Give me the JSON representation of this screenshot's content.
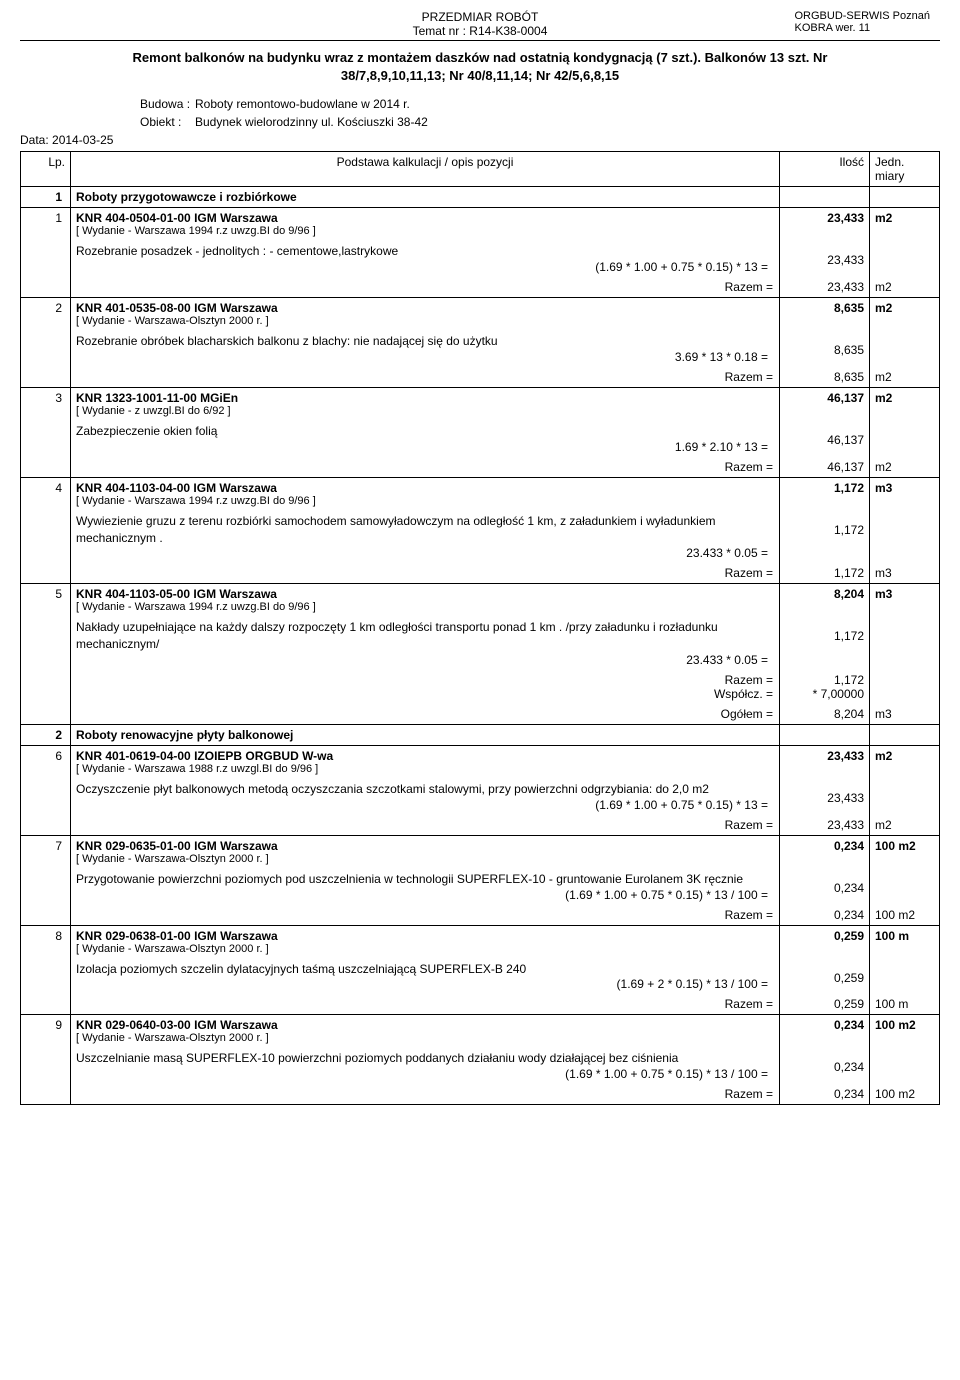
{
  "header": {
    "center_line1": "PRZEDMIAR ROBÓT",
    "center_line2": "Temat nr : R14-K38-0004",
    "right_line1": "ORGBUD-SERWIS Poznań",
    "right_line2": "KOBRA wer. 11"
  },
  "title": "Remont balkonów na budynku wraz z montażem daszków nad ostatnią kondygnacją (7 szt.). Balkonów 13 szt. Nr 38/7,8,9,10,11,13; Nr 40/8,11,14; Nr 42/5,6,8,15",
  "meta": {
    "budowa_label": "Budowa :",
    "budowa": "Roboty remontowo-budowlane w 2014 r.",
    "obiekt_label": "Obiekt :",
    "obiekt": "Budynek wielorodzinny ul. Kościuszki 38-42",
    "data_label": "Data:",
    "data": "2014-03-25"
  },
  "columns": {
    "lp": "Lp.",
    "desc": "Podstawa kalkulacji / opis pozycji",
    "qty": "Ilość",
    "unit": "Jedn. miary"
  },
  "sections": [
    {
      "num": "1",
      "title": "Roboty przygotowawcze i rozbiórkowe"
    },
    {
      "num": "2",
      "title": "Roboty renowacyjne płyty balkonowej"
    }
  ],
  "items": [
    {
      "num": "1",
      "code": "KNR 404-0504-01-00 IGM Warszawa",
      "edition": "[ Wydanie - Warszawa 1994 r.z uwzg.BI do 9/96 ]",
      "desc": "Rozebranie posadzek - jednolitych : - cementowe,lastrykowe",
      "calc": "(1.69 * 1.00 + 0.75 * 0.15) * 13 =",
      "calc_val": "23,433",
      "razem": "Razem  =",
      "razem_val": "23,433",
      "razem_unit": "m2",
      "qty": "23,433",
      "unit": "m2"
    },
    {
      "num": "2",
      "code": "KNR 401-0535-08-00 IGM Warszawa",
      "edition": "[ Wydanie - Warszawa-Olsztyn 2000 r. ]",
      "desc": "Rozebranie obróbek blacharskich balkonu z blachy: nie nadającej się do użytku",
      "calc": "3.69 * 13 * 0.18 =",
      "calc_val": "8,635",
      "razem": "Razem  =",
      "razem_val": "8,635",
      "razem_unit": "m2",
      "qty": "8,635",
      "unit": "m2"
    },
    {
      "num": "3",
      "code": "KNR 1323-1001-11-00 MGiEn",
      "edition": "[ Wydanie - z uwzgl.BI do 6/92 ]",
      "desc": "Zabezpieczenie okien folią",
      "calc": "1.69 * 2.10 * 13 =",
      "calc_val": "46,137",
      "razem": "Razem  =",
      "razem_val": "46,137",
      "razem_unit": "m2",
      "qty": "46,137",
      "unit": "m2"
    },
    {
      "num": "4",
      "code": "KNR 404-1103-04-00 IGM Warszawa",
      "edition": "[ Wydanie - Warszawa 1994 r.z uwzg.BI do 9/96 ]",
      "desc": "Wywiezienie gruzu z terenu rozbiórki samochodem samowyładowczym na odległość 1 km, z załadunkiem i wyładunkiem mechanicznym .",
      "calc": "23.433 * 0.05 =",
      "calc_val": "1,172",
      "razem": "Razem  =",
      "razem_val": "1,172",
      "razem_unit": "m3",
      "qty": "1,172",
      "unit": "m3"
    },
    {
      "num": "5",
      "code": "KNR 404-1103-05-00 IGM Warszawa",
      "edition": "[ Wydanie - Warszawa 1994 r.z uwzg.BI do 9/96 ]",
      "desc": "Nakłady uzupełniające na każdy dalszy rozpoczęty 1 km odległości transportu ponad  1 km . /przy załadunku i rozładunku mechanicznym/",
      "calc": "23.433 * 0.05 =",
      "calc_val": "1,172",
      "razem": "Razem =",
      "razem_val": "1,172",
      "wspolcz": "Współcz. =",
      "wspolcz_val": "* 7,00000",
      "ogolem": "Ogółem  =",
      "ogolem_val": "8,204",
      "ogolem_unit": "m3",
      "qty": "8,204",
      "unit": "m3"
    },
    {
      "num": "6",
      "code": "KNR 401-0619-04-00 IZOIEPB ORGBUD W-wa",
      "edition": "[ Wydanie - Warszawa 1988 r.z uwzgl.BI do 9/96 ]",
      "desc": "Oczyszczenie płyt balkonowych metodą oczyszczania szczotkami stalowymi, przy powierzchni odgrzybiania: do 2,0 m2",
      "calc": "(1.69 * 1.00 + 0.75 * 0.15) * 13 =",
      "calc_val": "23,433",
      "razem": "Razem  =",
      "razem_val": "23,433",
      "razem_unit": "m2",
      "qty": "23,433",
      "unit": "m2"
    },
    {
      "num": "7",
      "code": "KNR 029-0635-01-00 IGM Warszawa",
      "edition": "[ Wydanie - Warszawa-Olsztyn 2000 r. ]",
      "desc": "Przygotowanie powierzchni poziomych pod uszczelnienia w technologii SUPERFLEX-10 - gruntowanie Eurolanem 3K ręcznie",
      "calc": "(1.69 * 1.00 + 0.75 * 0.15) * 13 / 100 =",
      "calc_val": "0,234",
      "razem": "Razem  =",
      "razem_val": "0,234",
      "razem_unit": "100 m2",
      "qty": "0,234",
      "unit": "100 m2"
    },
    {
      "num": "8",
      "code": "KNR 029-0638-01-00 IGM Warszawa",
      "edition": "[ Wydanie - Warszawa-Olsztyn 2000 r. ]",
      "desc": "Izolacja poziomych szczelin dylatacyjnych taśmą uszczelniającą SUPERFLEX-B 240",
      "calc": "(1.69 + 2 * 0.15) * 13 / 100 =",
      "calc_val": "0,259",
      "razem": "Razem  =",
      "razem_val": "0,259",
      "razem_unit": "100 m",
      "qty": "0,259",
      "unit": "100 m"
    },
    {
      "num": "9",
      "code": "KNR 029-0640-03-00 IGM Warszawa",
      "edition": "[ Wydanie - Warszawa-Olsztyn 2000 r. ]",
      "desc": "Uszczelnianie masą SUPERFLEX-10 powierzchni poziomych poddanych działaniu wody działającej bez ciśnienia",
      "calc": "(1.69 * 1.00 + 0.75 * 0.15) * 13 / 100 =",
      "calc_val": "0,234",
      "razem": "Razem  =",
      "razem_val": "0,234",
      "razem_unit": "100 m2",
      "qty": "0,234",
      "unit": "100 m2"
    }
  ]
}
